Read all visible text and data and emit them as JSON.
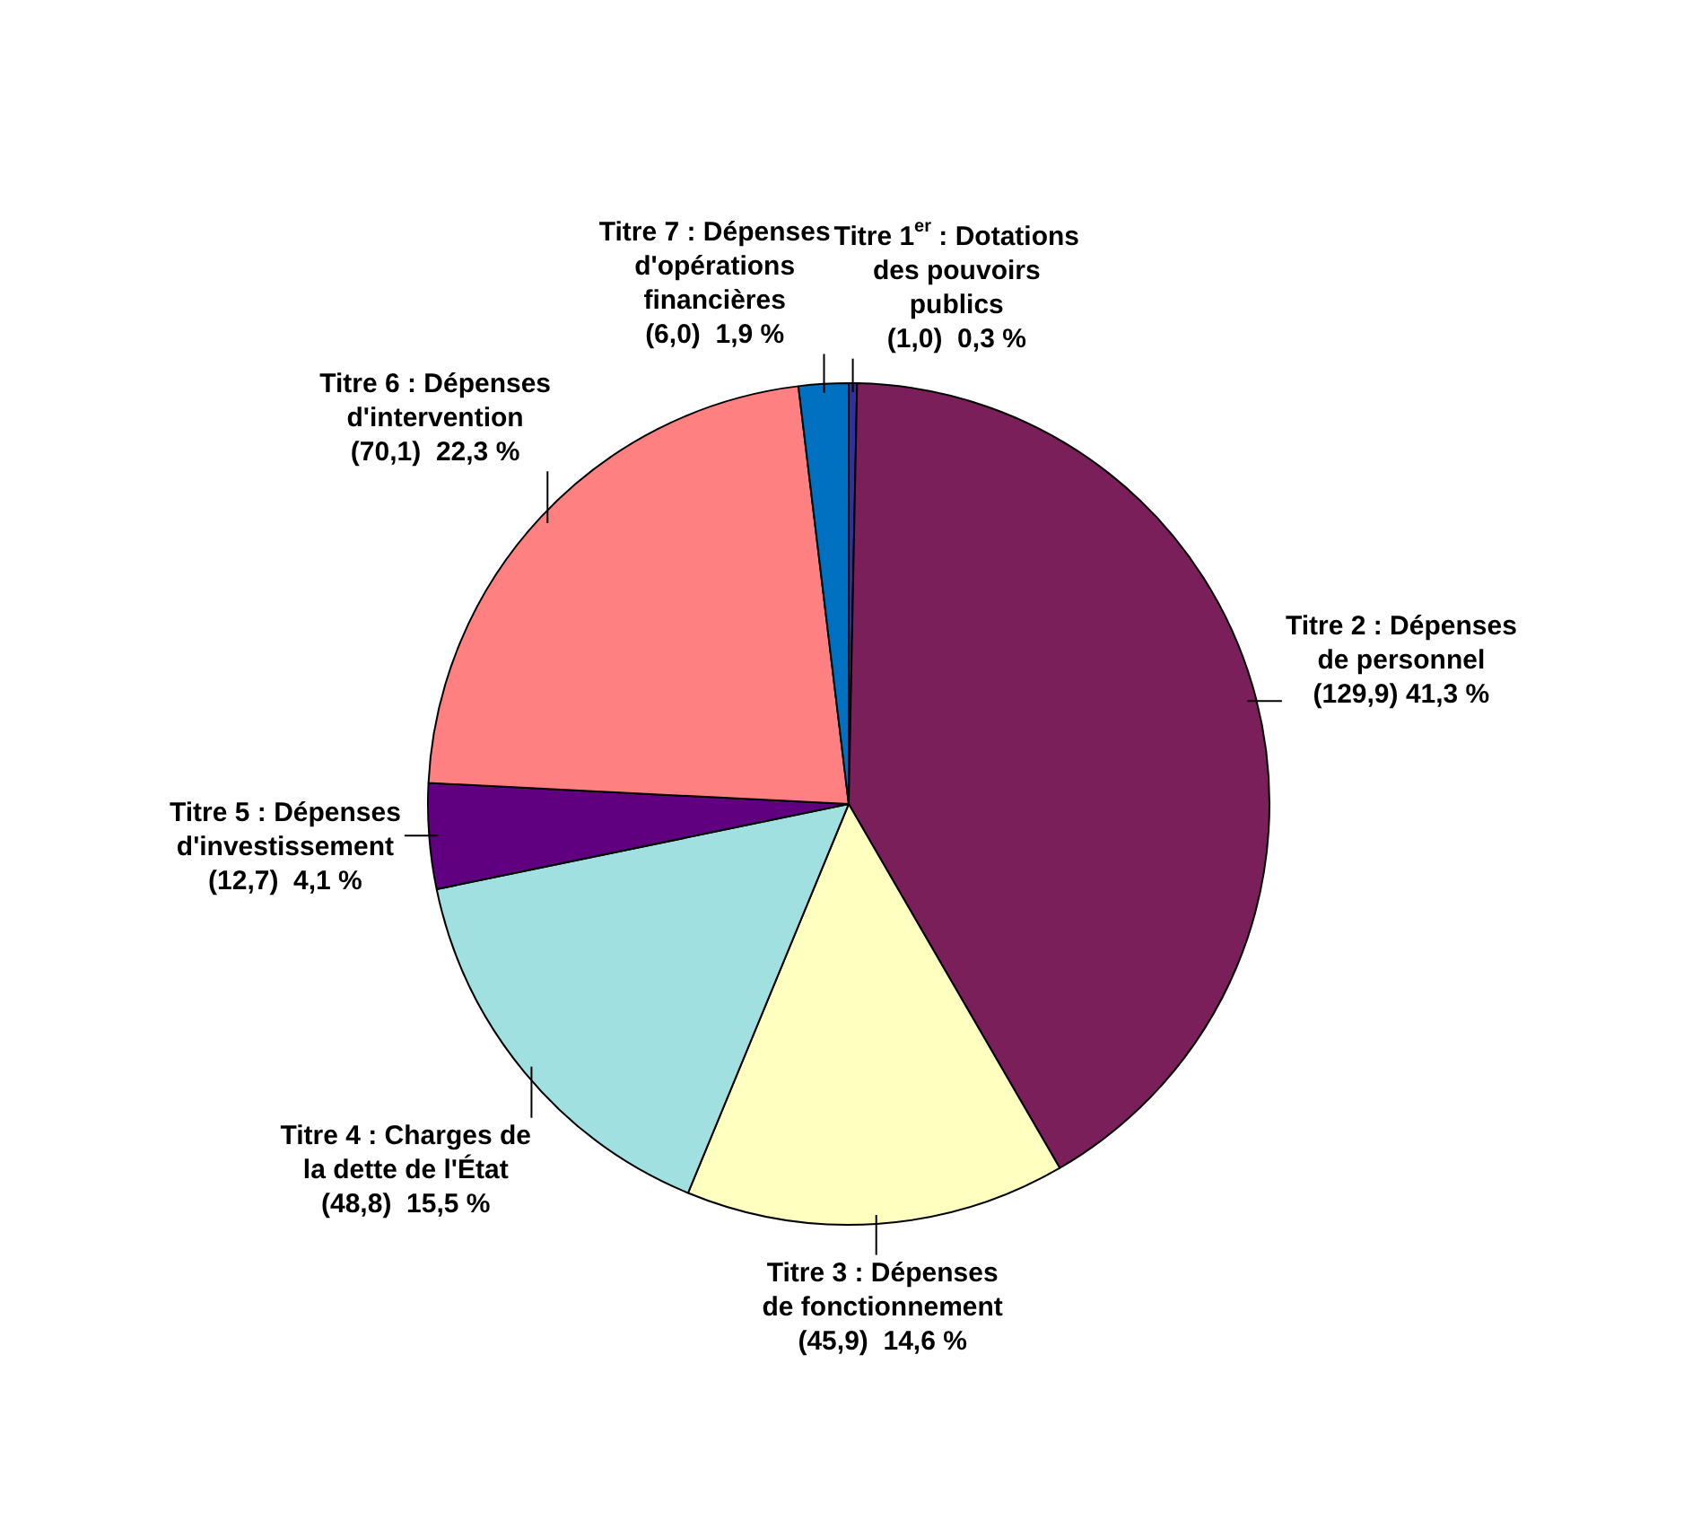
{
  "chart_data": {
    "type": "pie",
    "categories": [
      "Titre 1$^{er}$ : Dotations des pouvoirs publics",
      "Titre 2 : Dépenses de personnel",
      "Titre 3 : Dépenses de fonctionnement",
      "Titre 4 : Charges de la dette de l'État",
      "Titre 5 : Dépenses d'investissement",
      "Titre 6 : Dépenses d'intervention",
      "Titre 7 : Dépenses d'opérations financières"
    ],
    "values": [
      1.0,
      129.9,
      45.9,
      48.8,
      12.7,
      70.1,
      6.0
    ],
    "value_labels": [
      "(1,0)  0,3 %",
      "(129,9) 41,3 %",
      "(45,9)  14,6 %",
      "(48,8)  15,5 %",
      "(12,7)  4,1 %",
      "(70,1)  22,3 %",
      "(6,0)  1,9 %"
    ],
    "colors": [
      "#3030a0",
      "#7b1f5a",
      "#ffffc0",
      "#a0e0e0",
      "#600080",
      "#ff8080",
      "#0070c0"
    ],
    "legend": false
  }
}
